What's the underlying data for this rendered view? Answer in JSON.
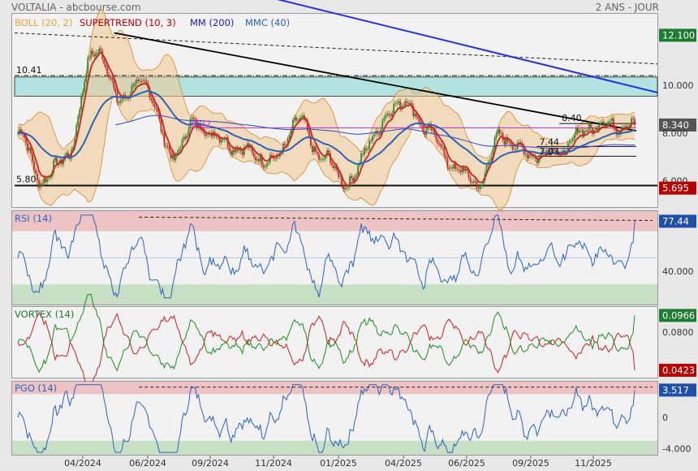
{
  "header": {
    "title": "VOLTALIA - abcbourse.com",
    "period": "2 ANS - JOUR"
  },
  "legend_main": [
    {
      "label": "BOLL (20, 2)",
      "color": "#e9a23b"
    },
    {
      "label": "SUPERTREND (10, 3)",
      "color": "#c00000"
    },
    {
      "label": "MM (200)",
      "color": "#1a1acc"
    },
    {
      "label": "MMC (40)",
      "color": "#2b62b8"
    }
  ],
  "price_labels": {
    "level_1041": "10.41",
    "level_580": "5.80",
    "level_840": "8.40",
    "level_744": "7.44",
    "level_703": "7.03",
    "level_822": "8.22"
  },
  "right_axis": {
    "tag_12100": "12.100",
    "tick_10000": "10.000",
    "tag_8340": "8.340",
    "tick_8000": "8.000",
    "tick_6000": "6.000",
    "tag_5695": "5.695",
    "tag_7744": "77.44",
    "tick_40000": "40.000",
    "tag_00966": "0.0966",
    "tick_00800": "0.0800",
    "tag_00423": "0.0423",
    "tag_3517": "3.517",
    "tick_0": "0",
    "tick_m4000": "-4.000"
  },
  "tag_colors": {
    "green": "#1e7b32",
    "red": "#b30000",
    "blue": "#1f4fa6"
  },
  "panels": {
    "rsi": {
      "label": "RSI (14)",
      "last": 77.44
    },
    "vortex": {
      "label": "VORTEX (14)",
      "last_plus": 0.0966,
      "last_minus": 0.0423
    },
    "pgo": {
      "label": "PGO (14)",
      "last": 3.517
    }
  },
  "x_labels": [
    "04/2024",
    "06/2024",
    "09/2024",
    "11/2024",
    "01/2025",
    "04/2025",
    "06/2025",
    "09/2025",
    "11/2025"
  ],
  "chart_data": {
    "type": "line",
    "title": "VOLTALIA",
    "x_ticks": [
      "04/2024",
      "06/2024",
      "09/2024",
      "11/2024",
      "01/2025",
      "04/2025",
      "06/2025",
      "09/2025",
      "11/2025"
    ],
    "price_key_points": [
      {
        "x": "01/2024",
        "y": 8.0
      },
      {
        "x": "03/2024",
        "y": 6.0
      },
      {
        "x": "04/2024",
        "y": 7.2
      },
      {
        "x": "05/2024",
        "y": 11.6
      },
      {
        "x": "06/2024",
        "y": 9.5
      },
      {
        "x": "07/2024",
        "y": 10.1
      },
      {
        "x": "08/2024",
        "y": 7.1
      },
      {
        "x": "09/2024",
        "y": 8.4
      },
      {
        "x": "10/2024",
        "y": 7.7
      },
      {
        "x": "11/2024",
        "y": 7.2
      },
      {
        "x": "12/2024",
        "y": 6.8
      },
      {
        "x": "02/2025",
        "y": 8.5
      },
      {
        "x": "03/2025",
        "y": 6.9
      },
      {
        "x": "04/2025",
        "y": 5.9
      },
      {
        "x": "05/2025",
        "y": 8.0
      },
      {
        "x": "06/2025",
        "y": 9.4
      },
      {
        "x": "07/2025",
        "y": 8.3
      },
      {
        "x": "08/2025",
        "y": 6.7
      },
      {
        "x": "09/2025",
        "y": 5.85
      },
      {
        "x": "10/2025",
        "y": 7.9
      },
      {
        "x": "11/2025",
        "y": 7.1
      },
      {
        "x": "12/2025",
        "y": 7.2
      },
      {
        "x": "01/2026",
        "y": 8.34
      }
    ],
    "levels": [
      10.41,
      5.8,
      8.4,
      7.44,
      7.03,
      8.22
    ],
    "resistance_zone": [
      9.55,
      10.35
    ],
    "rsi_range": [
      15,
      85
    ],
    "rsi_bands": [
      70,
      30
    ],
    "rsi_last": 77.44,
    "vortex_last": {
      "plus": 0.0966,
      "minus": 0.0423
    },
    "pgo_last": 3.517,
    "pgo_bands": [
      3,
      -3
    ]
  }
}
